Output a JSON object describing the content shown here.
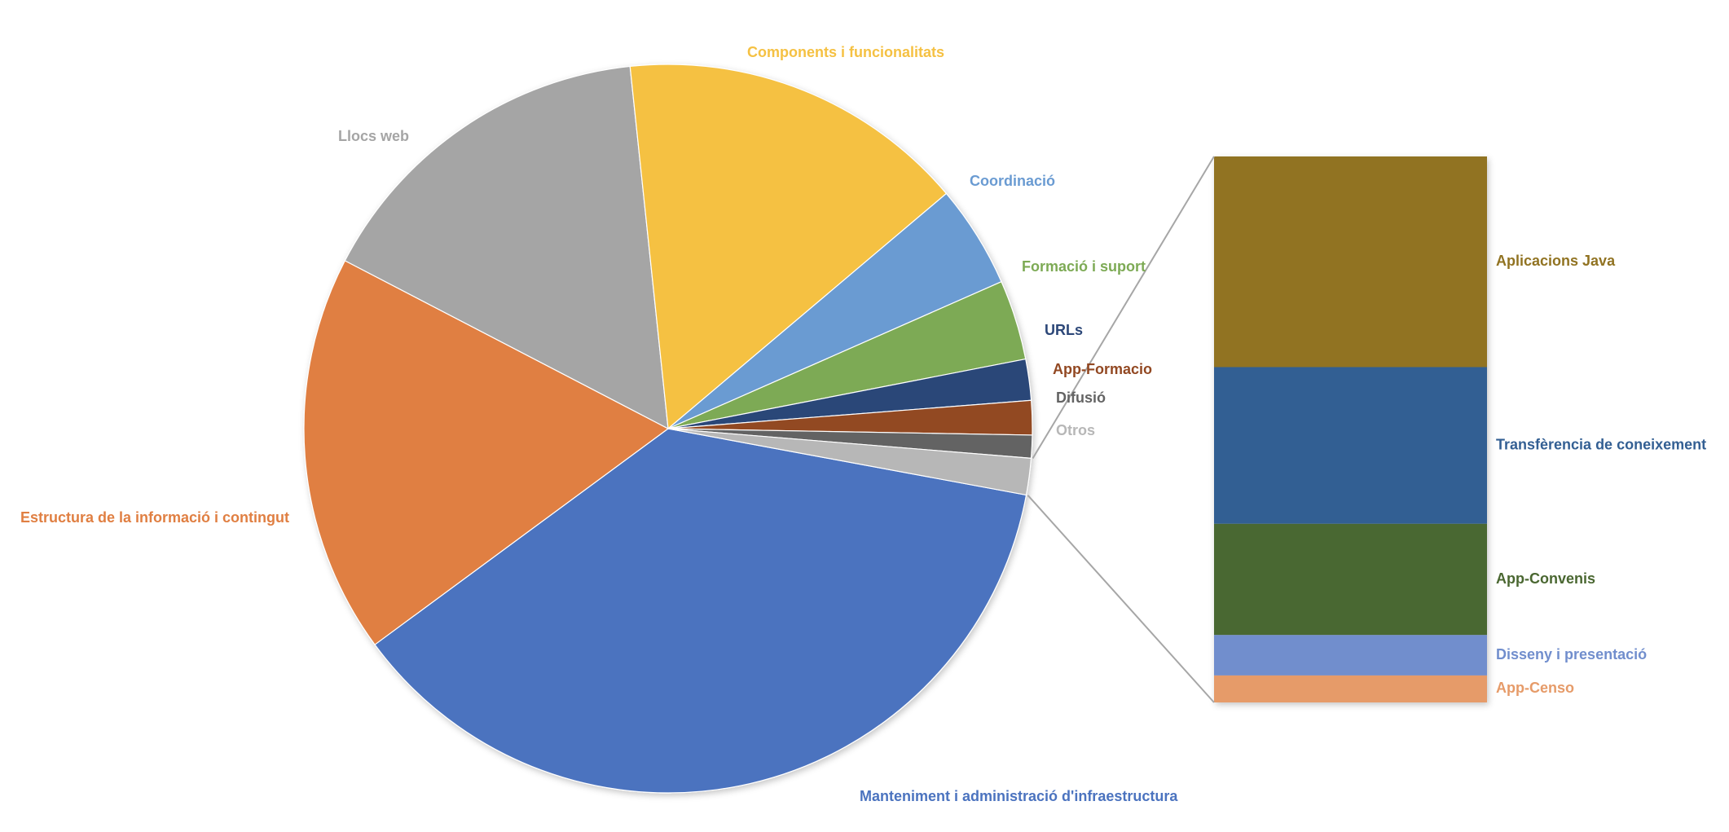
{
  "chart_data": {
    "type": "pie",
    "variant": "bar-of-pie",
    "title": "",
    "legend": "none",
    "slices": [
      {
        "label": "Manteniment i administració d'infraestructura",
        "value": 36.5,
        "color": "#4b73bf"
      },
      {
        "label": "Estructura de la informació i contingut",
        "value": 17.5,
        "color": "#e07f42"
      },
      {
        "label": "Llocs web",
        "value": 15.5,
        "color": "#a5a5a5"
      },
      {
        "label": "Components i funcionalitats",
        "value": 15.3,
        "color": "#f5c143"
      },
      {
        "label": "Coordinació",
        "value": 4.5,
        "color": "#6a9bd2"
      },
      {
        "label": "Formació i suport",
        "value": 3.5,
        "color": "#7daa55"
      },
      {
        "label": "URLs",
        "value": 1.8,
        "color": "#2c4778"
      },
      {
        "label": "App-Formacio",
        "value": 1.5,
        "color": "#924822"
      },
      {
        "label": "Difusió",
        "value": 1.0,
        "color": "#636363"
      },
      {
        "label": "Otros",
        "value": 1.6,
        "color": "#b7b7b7"
      }
    ],
    "other_breakdown": [
      {
        "label": "Aplicacions Java",
        "value": 0.625,
        "color": "#917322"
      },
      {
        "label": "Transfèrencia de coneixement",
        "value": 0.465,
        "color": "#335f93"
      },
      {
        "label": "App-Convenis",
        "value": 0.33,
        "color": "#4a6731"
      },
      {
        "label": "Disseny i presentació",
        "value": 0.12,
        "color": "#718ecd"
      },
      {
        "label": "App-Censo",
        "value": 0.08,
        "color": "#e69b69"
      }
    ],
    "connector_color": "#a6a6a6"
  }
}
